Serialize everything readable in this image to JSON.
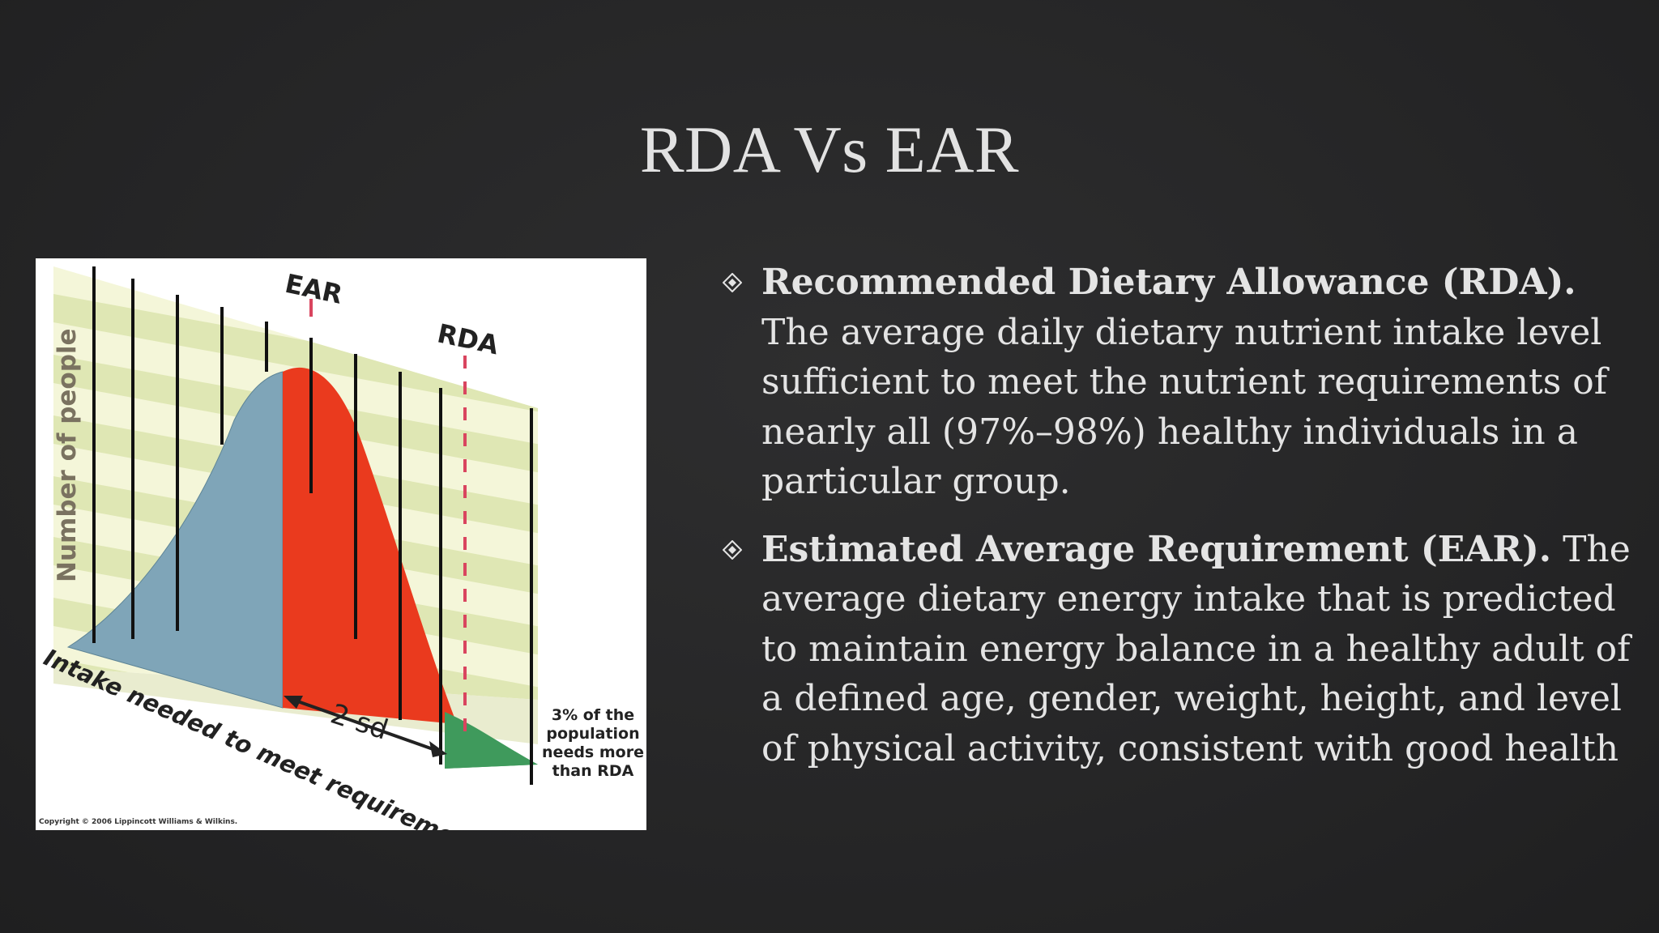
{
  "slide": {
    "title": "RDA Vs EAR"
  },
  "figure": {
    "labels": {
      "ear": "EAR",
      "rda": "RDA",
      "y_axis": "Number of people",
      "x_axis": "Intake needed to meet requirement",
      "sd": "2 sd",
      "note_line1": "3% of the",
      "note_line2": "population",
      "note_line3": "needs more",
      "note_line4": "than RDA",
      "copyright": "Copyright © 2006 Lippincott Williams & Wilkins."
    },
    "colors": {
      "below_ear": "#7fa5b8",
      "between_ear_rda": "#ea3a1e",
      "above_rda": "#3f9a5c",
      "ear_marker": "#d9455f",
      "rda_marker": "#d9455f"
    }
  },
  "bullets": [
    {
      "term": "Recommended Dietary Allowance (RDA).",
      "text": " The average daily dietary nutrient intake level sufficient to meet the nutrient requirements of nearly all (97%–98%) healthy individuals in a particular group."
    },
    {
      "term": "Estimated Average Requirement (EAR).",
      "text": " The average dietary energy intake that is predicted to maintain energy balance in a healthy adult of a defined age, gender, weight, height, and level of physical activity, consistent with good health"
    }
  ],
  "icons": {
    "bullet": "diamond-bullet-icon"
  }
}
